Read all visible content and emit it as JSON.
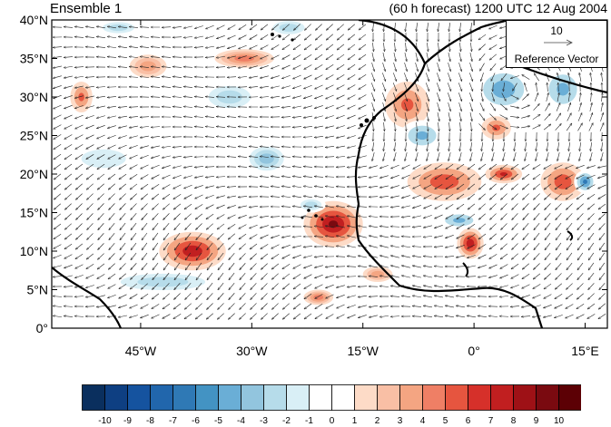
{
  "map": {
    "title_left": "Ensemble 1",
    "title_right": "(60 h forecast) 1200 UTC 12 Aug 2004",
    "lat_labels": [
      "40°N",
      "35°N",
      "30°N",
      "25°N",
      "20°N",
      "15°N",
      "10°N",
      "5°N",
      "0°"
    ],
    "lat_values": [
      40,
      35,
      30,
      25,
      20,
      15,
      10,
      5,
      0
    ],
    "lon_labels": [
      "45°W",
      "30°W",
      "15°W",
      "0°",
      "15°E"
    ],
    "lon_values": [
      -45,
      -30,
      -15,
      0,
      15
    ],
    "lon_range": [
      -57,
      18
    ],
    "lat_range": [
      0,
      40
    ],
    "reference_vector": {
      "magnitude": "10",
      "label": "Reference Vector"
    },
    "colorbar": {
      "labels": [
        "-10",
        "-9",
        "-8",
        "-7",
        "-6",
        "-5",
        "-4",
        "-3",
        "-2",
        "-1",
        "0",
        "1",
        "2",
        "3",
        "4",
        "5",
        "6",
        "7",
        "8",
        "9",
        "10"
      ],
      "colors": [
        "#0a2f5e",
        "#0e3f82",
        "#15539f",
        "#2166ac",
        "#2f79b5",
        "#4393c3",
        "#6aaed6",
        "#92c5de",
        "#b6dcea",
        "#d9eff6",
        "#ffffff",
        "#ffffff",
        "#fddbc7",
        "#f9bfa5",
        "#f4a582",
        "#ef7f65",
        "#e6553f",
        "#d6302a",
        "#c11f20",
        "#9e1116",
        "#7a0a10",
        "#5c0005"
      ]
    },
    "anomalies": [
      {
        "lon": -38,
        "lat": 10,
        "value": 8,
        "rx": 4.5,
        "ry": 2.5
      },
      {
        "lon": -19,
        "lat": 13.5,
        "value": 9,
        "rx": 4,
        "ry": 3
      },
      {
        "lon": -0.5,
        "lat": 11,
        "value": 8,
        "rx": 1.8,
        "ry": 2
      },
      {
        "lon": -4,
        "lat": 19,
        "value": 6,
        "rx": 5,
        "ry": 2.5
      },
      {
        "lon": 4,
        "lat": 20,
        "value": 7,
        "rx": 2.5,
        "ry": 1.2
      },
      {
        "lon": 12,
        "lat": 19,
        "value": 6,
        "rx": 3,
        "ry": 2.5
      },
      {
        "lon": -9,
        "lat": 29,
        "value": 5,
        "rx": 3,
        "ry": 3
      },
      {
        "lon": -31,
        "lat": 35,
        "value": 4,
        "rx": 4,
        "ry": 1.2
      },
      {
        "lon": -53,
        "lat": 30,
        "value": 5,
        "rx": 1.5,
        "ry": 2
      },
      {
        "lon": -44,
        "lat": 34,
        "value": 3,
        "rx": 2.5,
        "ry": 1.5
      },
      {
        "lon": -21,
        "lat": 4,
        "value": 4,
        "rx": 2,
        "ry": 1
      },
      {
        "lon": 3,
        "lat": 26,
        "value": 5,
        "rx": 2,
        "ry": 1.5
      },
      {
        "lon": -13,
        "lat": 7,
        "value": 3,
        "rx": 2,
        "ry": 1
      },
      {
        "lon": 4,
        "lat": 31,
        "value": -6,
        "rx": 4,
        "ry": 3
      },
      {
        "lon": 12,
        "lat": 31,
        "value": -5,
        "rx": 3,
        "ry": 3
      },
      {
        "lon": -7,
        "lat": 25,
        "value": -5,
        "rx": 3,
        "ry": 2
      },
      {
        "lon": 15,
        "lat": 19,
        "value": -7,
        "rx": 1.5,
        "ry": 1.5
      },
      {
        "lon": -2,
        "lat": 14,
        "value": -5,
        "rx": 3,
        "ry": 1.2
      },
      {
        "lon": -42,
        "lat": 6,
        "value": -3,
        "rx": 8,
        "ry": 1.5
      },
      {
        "lon": -28,
        "lat": 22,
        "value": -4,
        "rx": 3,
        "ry": 2
      },
      {
        "lon": -33,
        "lat": 30,
        "value": -3,
        "rx": 4,
        "ry": 2
      },
      {
        "lon": -25,
        "lat": 39,
        "value": -3,
        "rx": 3,
        "ry": 1.2
      },
      {
        "lon": -50,
        "lat": 22,
        "value": -2,
        "rx": 5,
        "ry": 2
      },
      {
        "lon": -22,
        "lat": 16,
        "value": -3,
        "rx": 2,
        "ry": 1
      },
      {
        "lon": -48,
        "lat": 39,
        "value": -3,
        "rx": 3,
        "ry": 1
      }
    ]
  }
}
